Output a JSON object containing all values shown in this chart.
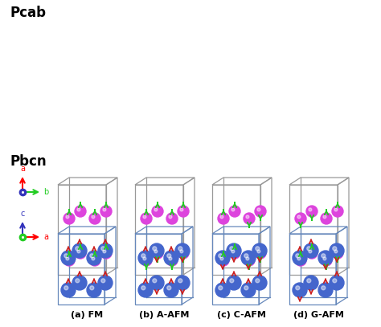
{
  "title_pcab": "Pcab",
  "title_pbcn": "Pbcn",
  "labels": [
    "(a) FM",
    "(b) A-AFM",
    "(c) C-AFM",
    "(d) G-AFM"
  ],
  "bg_color": "#ffffff",
  "pcab_atom_color": "#dd44dd",
  "pcab_arrow_color": "#22cc22",
  "pbcn_atom_color": "#4466cc",
  "pbcn_arrow_color": "#cc2222",
  "pcab_spin_patterns": [
    [
      1,
      1,
      1,
      1,
      1,
      1,
      1,
      1
    ],
    [
      -1,
      -1,
      1,
      1,
      -1,
      -1,
      1,
      1
    ],
    [
      1,
      -1,
      1,
      -1,
      1,
      -1,
      1,
      -1
    ],
    [
      1,
      -1,
      -1,
      1,
      1,
      -1,
      -1,
      1
    ]
  ],
  "pbcn_spin_patterns": [
    [
      1,
      1,
      1,
      1,
      1,
      1,
      1,
      1
    ],
    [
      -1,
      -1,
      -1,
      -1,
      1,
      1,
      1,
      1
    ],
    [
      1,
      1,
      -1,
      -1,
      1,
      1,
      -1,
      -1
    ],
    [
      -1,
      1,
      1,
      -1,
      -1,
      1,
      1,
      -1
    ]
  ]
}
